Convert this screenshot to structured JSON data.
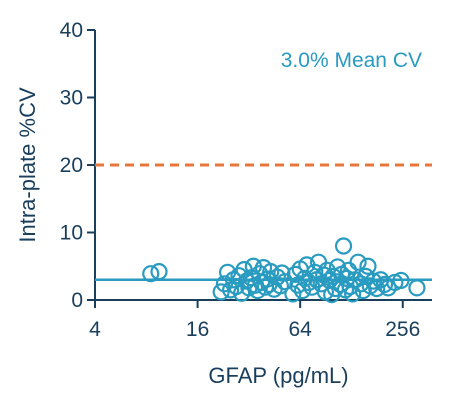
{
  "chart_data": {
    "type": "scatter",
    "xlabel": "GFAP (pg/mL)",
    "ylabel": "Intra-plate %CV",
    "x_scale": "log2",
    "xlim": [
      4,
      380
    ],
    "ylim": [
      0,
      40
    ],
    "x_ticks": [
      4,
      16,
      64,
      256
    ],
    "x_tick_labels": [
      "4",
      "16",
      "64",
      "256"
    ],
    "y_ticks": [
      0,
      10,
      20,
      30,
      40
    ],
    "y_tick_labels": [
      "0",
      "10",
      "20",
      "30",
      "40"
    ],
    "annotation": "3.0% Mean CV",
    "mean_line": {
      "y": 3.0,
      "color": "#2a9bc0"
    },
    "threshold_line": {
      "y": 20,
      "color": "#e8763a",
      "style": "dashed"
    },
    "marker_color": "#2a9bc0",
    "grid": false,
    "points": [
      {
        "x": 8.5,
        "y": 3.9
      },
      {
        "x": 9.5,
        "y": 4.2
      },
      {
        "x": 22,
        "y": 1.2
      },
      {
        "x": 23,
        "y": 2.4
      },
      {
        "x": 24,
        "y": 4.1
      },
      {
        "x": 25,
        "y": 1.5
      },
      {
        "x": 26,
        "y": 3.0
      },
      {
        "x": 27,
        "y": 2.0
      },
      {
        "x": 28,
        "y": 3.6
      },
      {
        "x": 29,
        "y": 1.0
      },
      {
        "x": 30,
        "y": 4.5
      },
      {
        "x": 31,
        "y": 2.8
      },
      {
        "x": 32,
        "y": 1.8
      },
      {
        "x": 33,
        "y": 3.3
      },
      {
        "x": 34,
        "y": 5.0
      },
      {
        "x": 35,
        "y": 2.2
      },
      {
        "x": 36,
        "y": 1.4
      },
      {
        "x": 37,
        "y": 3.9
      },
      {
        "x": 38,
        "y": 2.6
      },
      {
        "x": 39,
        "y": 4.8
      },
      {
        "x": 40,
        "y": 1.9
      },
      {
        "x": 41,
        "y": 3.1
      },
      {
        "x": 42,
        "y": 2.3
      },
      {
        "x": 43,
        "y": 4.2
      },
      {
        "x": 45,
        "y": 1.6
      },
      {
        "x": 47,
        "y": 3.4
      },
      {
        "x": 49,
        "y": 2.1
      },
      {
        "x": 50,
        "y": 4.0
      },
      {
        "x": 52,
        "y": 2.7
      },
      {
        "x": 58,
        "y": 0.9
      },
      {
        "x": 60,
        "y": 3.8
      },
      {
        "x": 62,
        "y": 2.2
      },
      {
        "x": 64,
        "y": 4.6
      },
      {
        "x": 66,
        "y": 1.4
      },
      {
        "x": 68,
        "y": 3.2
      },
      {
        "x": 70,
        "y": 5.2
      },
      {
        "x": 72,
        "y": 2.6
      },
      {
        "x": 75,
        "y": 1.9
      },
      {
        "x": 78,
        "y": 4.1
      },
      {
        "x": 80,
        "y": 3.0
      },
      {
        "x": 82,
        "y": 5.6
      },
      {
        "x": 85,
        "y": 2.4
      },
      {
        "x": 88,
        "y": 3.7
      },
      {
        "x": 90,
        "y": 1.2
      },
      {
        "x": 92,
        "y": 4.4
      },
      {
        "x": 95,
        "y": 2.9
      },
      {
        "x": 98,
        "y": 0.8
      },
      {
        "x": 100,
        "y": 3.5
      },
      {
        "x": 103,
        "y": 1.7
      },
      {
        "x": 106,
        "y": 4.9
      },
      {
        "x": 110,
        "y": 2.3
      },
      {
        "x": 112,
        "y": 3.8
      },
      {
        "x": 115,
        "y": 8.0
      },
      {
        "x": 118,
        "y": 1.5
      },
      {
        "x": 120,
        "y": 3.2
      },
      {
        "x": 123,
        "y": 4.4
      },
      {
        "x": 126,
        "y": 2.0
      },
      {
        "x": 130,
        "y": 0.9
      },
      {
        "x": 135,
        "y": 3.0
      },
      {
        "x": 140,
        "y": 5.6
      },
      {
        "x": 145,
        "y": 2.4
      },
      {
        "x": 150,
        "y": 1.4
      },
      {
        "x": 155,
        "y": 3.5
      },
      {
        "x": 160,
        "y": 5.0
      },
      {
        "x": 165,
        "y": 2.1
      },
      {
        "x": 172,
        "y": 2.8
      },
      {
        "x": 180,
        "y": 1.7
      },
      {
        "x": 190,
        "y": 3.0
      },
      {
        "x": 200,
        "y": 2.3
      },
      {
        "x": 210,
        "y": 1.8
      },
      {
        "x": 230,
        "y": 2.6
      },
      {
        "x": 250,
        "y": 2.9
      },
      {
        "x": 310,
        "y": 1.8
      }
    ]
  }
}
